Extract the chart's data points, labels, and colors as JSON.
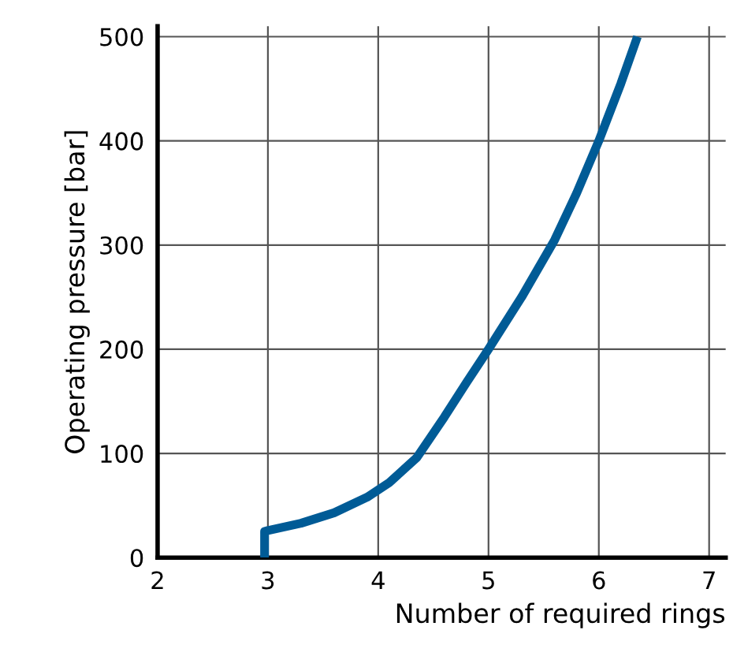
{
  "chart_data": {
    "type": "line",
    "xlabel": "Number of required rings",
    "ylabel": "Operating pressure [bar]",
    "series": [
      {
        "color": "#005b96",
        "x": [
          2.97,
          2.97,
          3.0,
          3.3,
          3.6,
          3.9,
          4.1,
          4.35,
          4.6,
          4.8,
          5.0,
          5.3,
          5.6,
          5.8,
          6.0,
          6.2,
          6.35
        ],
        "values": [
          0,
          25,
          26,
          33,
          43,
          58,
          72,
          96,
          135,
          168,
          200,
          250,
          305,
          350,
          400,
          455,
          500
        ]
      }
    ],
    "xlim": [
      2,
      7.15
    ],
    "xticks": [
      2,
      3,
      4,
      5,
      6,
      7
    ],
    "ylim": [
      0,
      510
    ],
    "yticks": [
      0,
      100,
      200,
      300,
      400,
      500
    ],
    "grid": true,
    "marker": "none",
    "line_style": "solid"
  }
}
